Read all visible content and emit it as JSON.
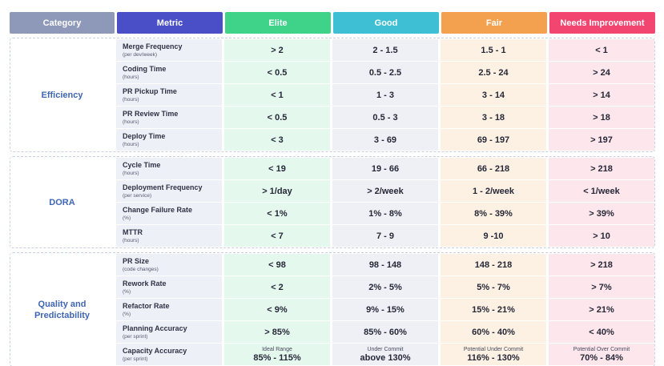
{
  "headers": {
    "category": "Category",
    "metric": "Metric",
    "elite": "Elite",
    "good": "Good",
    "fair": "Fair",
    "needs": "Needs Improvement"
  },
  "colors": {
    "category_header": "#8e98b9",
    "metric_header": "#4a4fc8",
    "elite": "#3ed389",
    "good": "#3fbfd3",
    "fair": "#f4a14f",
    "needs_improvement": "#f2456f",
    "category_text": "#3f66b4"
  },
  "groups": [
    {
      "category": "Efficiency",
      "rows": [
        {
          "metric": "Merge Frequency",
          "sub": "(per dev/week)",
          "elite": "> 2",
          "good": "2 - 1.5",
          "fair": "1.5 - 1",
          "needs": "< 1"
        },
        {
          "metric": "Coding Time",
          "sub": "(hours)",
          "elite": "< 0.5",
          "good": "0.5 - 2.5",
          "fair": "2.5 - 24",
          "needs": "> 24"
        },
        {
          "metric": "PR Pickup Time",
          "sub": "(hours)",
          "elite": "< 1",
          "good": "1 - 3",
          "fair": "3 - 14",
          "needs": "> 14"
        },
        {
          "metric": "PR Review Time",
          "sub": "(hours)",
          "elite": "< 0.5",
          "good": "0.5 - 3",
          "fair": "3 - 18",
          "needs": "> 18"
        },
        {
          "metric": "Deploy Time",
          "sub": "(hours)",
          "elite": "< 3",
          "good": "3 - 69",
          "fair": "69 - 197",
          "needs": "> 197"
        }
      ]
    },
    {
      "category": "DORA",
      "rows": [
        {
          "metric": "Cycle Time",
          "sub": "(hours)",
          "elite": "< 19",
          "good": "19 - 66",
          "fair": "66 - 218",
          "needs": "> 218"
        },
        {
          "metric": "Deployment Frequency",
          "sub": "(per service)",
          "elite": "> 1/day",
          "good": "> 2/week",
          "fair": "1 - 2/week",
          "needs": "< 1/week"
        },
        {
          "metric": "Change Failure Rate",
          "sub": "(%)",
          "elite": "< 1%",
          "good": "1% - 8%",
          "fair": "8% - 39%",
          "needs": "> 39%"
        },
        {
          "metric": "MTTR",
          "sub": "(hours)",
          "elite": "< 7",
          "good": "7 - 9",
          "fair": "9 -10",
          "needs": "> 10"
        }
      ]
    },
    {
      "category_line1": "Quality and",
      "category_line2": "Predictability",
      "rows": [
        {
          "metric": "PR Size",
          "sub": "(code changes)",
          "elite": "< 98",
          "good": "98 - 148",
          "fair": "148 - 218",
          "needs": "> 218"
        },
        {
          "metric": "Rework Rate",
          "sub": "(%)",
          "elite": "< 2",
          "good": "2% - 5%",
          "fair": "5% - 7%",
          "needs": "> 7%"
        },
        {
          "metric": "Refactor Rate",
          "sub": "(%)",
          "elite": "< 9%",
          "good": "9% - 15%",
          "fair": "15% - 21%",
          "needs": "> 21%"
        },
        {
          "metric": "Planning Accuracy",
          "sub": "(per sprint)",
          "elite": "> 85%",
          "good": "85% - 60%",
          "fair": "60% - 40%",
          "needs": "< 40%"
        }
      ],
      "capacity": {
        "metric": "Capacity Accuracy",
        "sub": "(per sprint)",
        "elite_note": "Ideal Range",
        "elite": "85% - 115%",
        "good_note": "Under Commit",
        "good": "above 130%",
        "fair_note": "Potential Under Commit",
        "fair": "116% - 130%",
        "needs_note": "Potential Over Commit",
        "needs": "70% - 84%"
      }
    }
  ]
}
